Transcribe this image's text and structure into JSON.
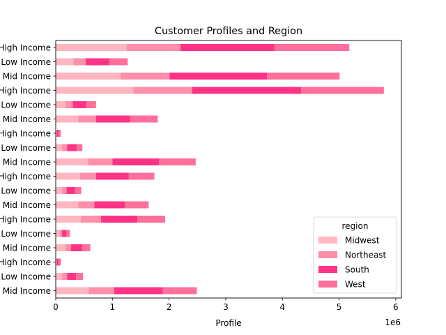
{
  "chart_data": {
    "type": "bar",
    "orientation": "horizontal",
    "stacked": true,
    "title": "Customer Profiles and Region",
    "xlabel": "Profile",
    "ylabel": "",
    "x_offset_label": "1e6",
    "xlim": [
      0,
      6100000
    ],
    "xticks": [
      0,
      1,
      2,
      3,
      4,
      5,
      6
    ],
    "categories": [
      "High Income",
      "Low Income",
      "Mid Income",
      "High Income",
      "Low Income",
      "Mid Income",
      "High Income",
      "Low Income",
      "Mid Income",
      "High Income",
      "Low Income",
      "Mid Income",
      "High Income",
      "Low Income",
      "Mid Income",
      "High Income",
      "Low Income",
      "Mid Income"
    ],
    "series": [
      {
        "name": "Midwest",
        "color": "#ffb6c1",
        "values": [
          1250000,
          310000,
          1140000,
          1370000,
          170000,
          400000,
          10000,
          110000,
          570000,
          430000,
          110000,
          400000,
          440000,
          70000,
          170000,
          10000,
          110000,
          580000
        ]
      },
      {
        "name": "Northeast",
        "color": "#ff8fab",
        "values": [
          950000,
          220000,
          870000,
          1040000,
          130000,
          310000,
          10000,
          90000,
          430000,
          280000,
          80000,
          280000,
          360000,
          40000,
          100000,
          10000,
          90000,
          450000
        ]
      },
      {
        "name": "South",
        "color": "#ff3385",
        "values": [
          1660000,
          410000,
          1720000,
          1920000,
          240000,
          600000,
          30000,
          170000,
          820000,
          580000,
          150000,
          540000,
          640000,
          80000,
          200000,
          30000,
          160000,
          860000
        ]
      },
      {
        "name": "West",
        "color": "#ff6f9c",
        "values": [
          1320000,
          330000,
          1280000,
          1460000,
          170000,
          490000,
          40000,
          100000,
          650000,
          450000,
          110000,
          420000,
          490000,
          60000,
          140000,
          40000,
          120000,
          600000
        ]
      }
    ],
    "legend": {
      "title": "region",
      "position": "lower right"
    },
    "grid": false
  }
}
